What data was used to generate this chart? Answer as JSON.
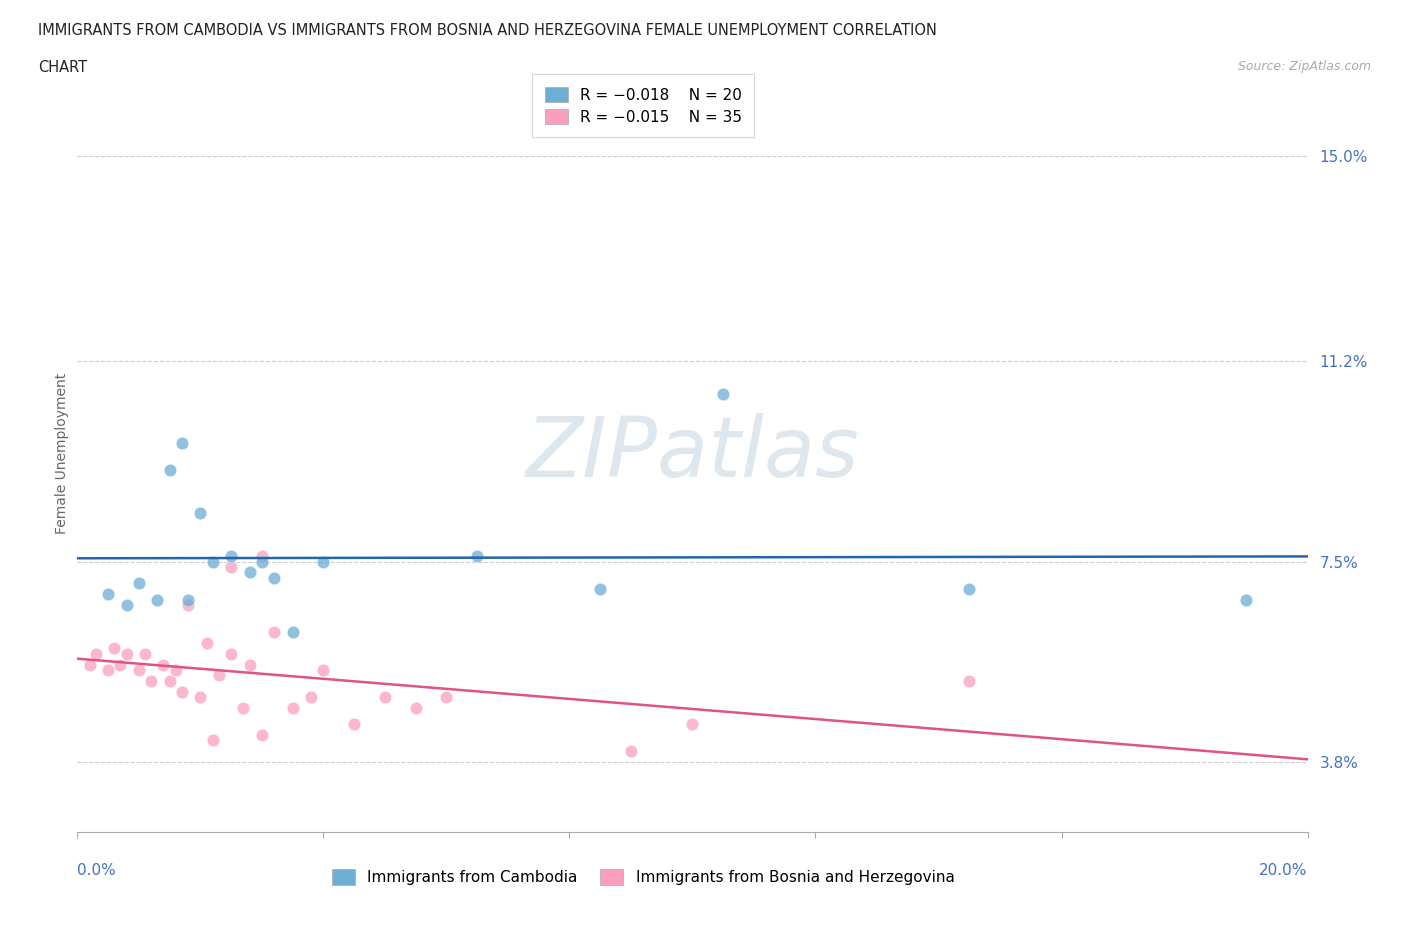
{
  "title_line1": "IMMIGRANTS FROM CAMBODIA VS IMMIGRANTS FROM BOSNIA AND HERZEGOVINA FEMALE UNEMPLOYMENT CORRELATION",
  "title_line2": "CHART",
  "source": "Source: ZipAtlas.com",
  "ylabel": "Female Unemployment",
  "yticks": [
    3.8,
    7.5,
    11.2,
    15.0
  ],
  "ytick_labels": [
    "3.8%",
    "7.5%",
    "11.2%",
    "15.0%"
  ],
  "xlim": [
    0.0,
    20.0
  ],
  "ylim": [
    2.5,
    16.5
  ],
  "cambodia_color": "#6baed6",
  "bosnia_color": "#fc9fbf",
  "cambodia_line_color": "#2166ac",
  "bosnia_line_color": "#e05580",
  "cambodia_points_x": [
    0.5,
    0.8,
    1.0,
    1.3,
    1.5,
    1.7,
    2.0,
    2.2,
    2.5,
    3.0,
    3.2,
    4.0,
    6.5,
    8.5,
    10.5,
    14.5,
    2.8,
    1.8,
    3.5,
    19.0
  ],
  "cambodia_points_y": [
    6.9,
    6.7,
    7.1,
    6.8,
    9.2,
    9.7,
    8.4,
    7.5,
    7.6,
    7.5,
    7.2,
    7.5,
    7.6,
    7.0,
    10.6,
    7.0,
    7.3,
    6.8,
    6.2,
    6.8
  ],
  "bosnia_points_x": [
    0.2,
    0.3,
    0.5,
    0.6,
    0.7,
    0.8,
    1.0,
    1.1,
    1.2,
    1.4,
    1.5,
    1.6,
    1.7,
    1.8,
    2.0,
    2.1,
    2.3,
    2.5,
    2.7,
    2.8,
    3.0,
    3.2,
    3.5,
    3.8,
    4.0,
    4.5,
    5.0,
    5.5,
    6.0,
    9.0,
    10.0,
    14.5,
    3.0,
    2.2,
    2.5
  ],
  "bosnia_points_y": [
    5.6,
    5.8,
    5.5,
    5.9,
    5.6,
    5.8,
    5.5,
    5.8,
    5.3,
    5.6,
    5.3,
    5.5,
    5.1,
    6.7,
    5.0,
    6.0,
    5.4,
    5.8,
    4.8,
    5.6,
    7.6,
    6.2,
    4.8,
    5.0,
    5.5,
    4.5,
    5.0,
    4.8,
    5.0,
    4.0,
    4.5,
    5.3,
    4.3,
    4.2,
    7.4
  ]
}
